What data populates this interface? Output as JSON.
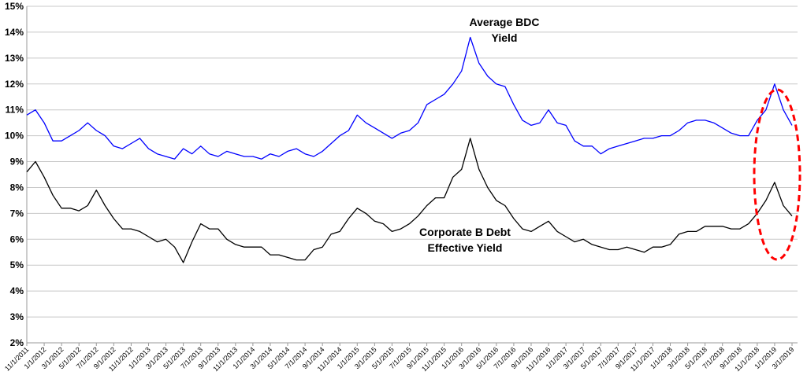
{
  "chart_data": {
    "type": "line",
    "title": "",
    "xlabel": "",
    "ylabel": "",
    "ylim": [
      2,
      15
    ],
    "y_ticks": [
      "2%",
      "3%",
      "4%",
      "5%",
      "6%",
      "7%",
      "8%",
      "9%",
      "10%",
      "11%",
      "12%",
      "13%",
      "14%",
      "15%"
    ],
    "x_ticks": [
      "11/1/2011",
      "1/1/2012",
      "3/1/2012",
      "5/1/2012",
      "7/1/2012",
      "9/1/2012",
      "11/1/2012",
      "1/1/2013",
      "3/1/2013",
      "5/1/2013",
      "7/1/2013",
      "9/1/2013",
      "11/1/2013",
      "1/1/2014",
      "3/1/2014",
      "5/1/2014",
      "7/1/2014",
      "9/1/2014",
      "11/1/2014",
      "1/1/2015",
      "3/1/2015",
      "5/1/2015",
      "7/1/2015",
      "9/1/2015",
      "11/1/2015",
      "1/1/2016",
      "3/1/2016",
      "5/1/2016",
      "7/1/2016",
      "9/1/2016",
      "11/1/2016",
      "1/1/2017",
      "3/1/2017",
      "5/1/2017",
      "7/1/2017",
      "9/1/2017",
      "11/1/2017",
      "1/1/2018",
      "3/1/2018",
      "5/1/2018",
      "7/1/2018",
      "9/1/2018",
      "11/1/2018",
      "1/1/2019",
      "3/1/2019"
    ],
    "grid": true,
    "x_start": "11/1/2011",
    "series": [
      {
        "name": "Average BDC Yield",
        "color": "#0000ff",
        "label": [
          "Average BDC",
          "Yield"
        ],
        "values": [
          10.8,
          11.0,
          10.5,
          9.8,
          9.8,
          10.0,
          10.2,
          10.5,
          10.2,
          10.0,
          9.6,
          9.5,
          9.7,
          9.9,
          9.5,
          9.3,
          9.2,
          9.1,
          9.5,
          9.3,
          9.6,
          9.3,
          9.2,
          9.4,
          9.3,
          9.2,
          9.2,
          9.1,
          9.3,
          9.2,
          9.4,
          9.5,
          9.3,
          9.2,
          9.4,
          9.7,
          10.0,
          10.2,
          10.8,
          10.5,
          10.3,
          10.1,
          9.9,
          10.1,
          10.2,
          10.5,
          11.2,
          11.4,
          11.6,
          12.0,
          12.5,
          13.8,
          12.8,
          12.3,
          12.0,
          11.9,
          11.2,
          10.6,
          10.4,
          10.5,
          11.0,
          10.5,
          10.4,
          9.8,
          9.6,
          9.6,
          9.3,
          9.5,
          9.6,
          9.7,
          9.8,
          9.9,
          9.9,
          10.0,
          10.0,
          10.2,
          10.5,
          10.6,
          10.6,
          10.5,
          10.3,
          10.1,
          10.0,
          10.0,
          10.6,
          11.0,
          12.0,
          11.0,
          10.4
        ]
      },
      {
        "name": "Corporate B Debt Effective Yield",
        "color": "#000000",
        "label": [
          "Corporate B Debt",
          "Effective Yield"
        ],
        "values": [
          8.6,
          9.0,
          8.4,
          7.7,
          7.2,
          7.2,
          7.1,
          7.3,
          7.9,
          7.3,
          6.8,
          6.4,
          6.4,
          6.3,
          6.1,
          5.9,
          6.0,
          5.7,
          5.1,
          5.9,
          6.6,
          6.4,
          6.4,
          6.0,
          5.8,
          5.7,
          5.7,
          5.7,
          5.4,
          5.4,
          5.3,
          5.2,
          5.2,
          5.6,
          5.7,
          6.2,
          6.3,
          6.8,
          7.2,
          7.0,
          6.7,
          6.6,
          6.3,
          6.4,
          6.6,
          6.9,
          7.3,
          7.6,
          7.6,
          8.4,
          8.7,
          9.9,
          8.7,
          8.0,
          7.5,
          7.3,
          6.8,
          6.4,
          6.3,
          6.5,
          6.7,
          6.3,
          6.1,
          5.9,
          6.0,
          5.8,
          5.7,
          5.6,
          5.6,
          5.7,
          5.6,
          5.5,
          5.7,
          5.7,
          5.8,
          6.2,
          6.3,
          6.3,
          6.5,
          6.5,
          6.5,
          6.4,
          6.4,
          6.6,
          7.0,
          7.5,
          8.2,
          7.3,
          6.9
        ]
      }
    ],
    "highlight": {
      "shape": "dashed ellipse",
      "color": "#ff0000",
      "around": "11/1/2018 - 3/1/2019"
    }
  }
}
